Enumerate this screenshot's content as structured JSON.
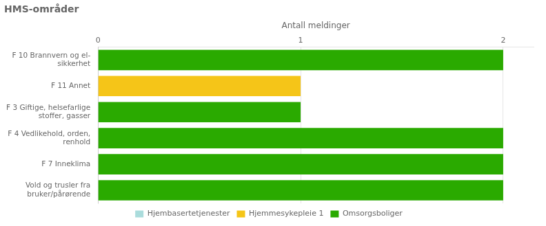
{
  "chart_data": {
    "type": "bar",
    "orientation": "horizontal",
    "stacked": true,
    "title": "HMS-områder",
    "xlabel": "Antall meldinger",
    "categories": [
      "Vold og trusler fra\nbruker/pårørende",
      "F 7 Inneklima",
      "F 4 Vedlikehold, orden,\nrenhold",
      "F 3 Giftige, helsefarlige\nstoffer, gasser",
      "F 11 Annet",
      "F 10 Brannvern og el-\nsikkerhet"
    ],
    "series": [
      {
        "name": "Hjembasertetjenester",
        "color": "#aadcdc",
        "values": [
          0,
          0,
          0,
          0,
          0,
          0
        ]
      },
      {
        "name": "Hjemmesykepleie 1",
        "color": "#f5c518",
        "values": [
          0,
          0,
          0,
          0,
          1,
          0
        ]
      },
      {
        "name": "Omsorgsboliger",
        "color": "#2aaa00",
        "values": [
          2,
          2,
          2,
          1,
          0,
          2
        ]
      }
    ],
    "xlim": [
      0,
      2.15
    ],
    "xticks": [
      0,
      1,
      2
    ],
    "grid": true,
    "legend": "bottom"
  }
}
